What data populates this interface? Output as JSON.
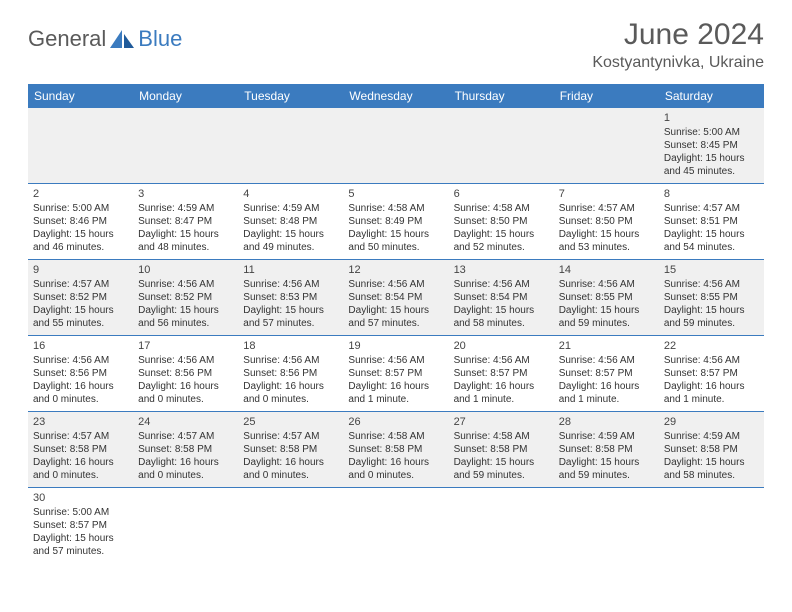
{
  "brand": {
    "part1": "General",
    "part2": "Blue"
  },
  "title": "June 2024",
  "location": "Kostyantynivka, Ukraine",
  "colors": {
    "header_bg": "#3b7bbf",
    "header_text": "#ffffff",
    "row_alt_bg": "#f0f0f0",
    "text": "#333333",
    "title_text": "#5a5a5a"
  },
  "days_of_week": [
    "Sunday",
    "Monday",
    "Tuesday",
    "Wednesday",
    "Thursday",
    "Friday",
    "Saturday"
  ],
  "weeks": [
    [
      null,
      null,
      null,
      null,
      null,
      null,
      {
        "n": "1",
        "sr": "5:00 AM",
        "ss": "8:45 PM",
        "dl": "15 hours and 45 minutes."
      }
    ],
    [
      {
        "n": "2",
        "sr": "5:00 AM",
        "ss": "8:46 PM",
        "dl": "15 hours and 46 minutes."
      },
      {
        "n": "3",
        "sr": "4:59 AM",
        "ss": "8:47 PM",
        "dl": "15 hours and 48 minutes."
      },
      {
        "n": "4",
        "sr": "4:59 AM",
        "ss": "8:48 PM",
        "dl": "15 hours and 49 minutes."
      },
      {
        "n": "5",
        "sr": "4:58 AM",
        "ss": "8:49 PM",
        "dl": "15 hours and 50 minutes."
      },
      {
        "n": "6",
        "sr": "4:58 AM",
        "ss": "8:50 PM",
        "dl": "15 hours and 52 minutes."
      },
      {
        "n": "7",
        "sr": "4:57 AM",
        "ss": "8:50 PM",
        "dl": "15 hours and 53 minutes."
      },
      {
        "n": "8",
        "sr": "4:57 AM",
        "ss": "8:51 PM",
        "dl": "15 hours and 54 minutes."
      }
    ],
    [
      {
        "n": "9",
        "sr": "4:57 AM",
        "ss": "8:52 PM",
        "dl": "15 hours and 55 minutes."
      },
      {
        "n": "10",
        "sr": "4:56 AM",
        "ss": "8:52 PM",
        "dl": "15 hours and 56 minutes."
      },
      {
        "n": "11",
        "sr": "4:56 AM",
        "ss": "8:53 PM",
        "dl": "15 hours and 57 minutes."
      },
      {
        "n": "12",
        "sr": "4:56 AM",
        "ss": "8:54 PM",
        "dl": "15 hours and 57 minutes."
      },
      {
        "n": "13",
        "sr": "4:56 AM",
        "ss": "8:54 PM",
        "dl": "15 hours and 58 minutes."
      },
      {
        "n": "14",
        "sr": "4:56 AM",
        "ss": "8:55 PM",
        "dl": "15 hours and 59 minutes."
      },
      {
        "n": "15",
        "sr": "4:56 AM",
        "ss": "8:55 PM",
        "dl": "15 hours and 59 minutes."
      }
    ],
    [
      {
        "n": "16",
        "sr": "4:56 AM",
        "ss": "8:56 PM",
        "dl": "16 hours and 0 minutes."
      },
      {
        "n": "17",
        "sr": "4:56 AM",
        "ss": "8:56 PM",
        "dl": "16 hours and 0 minutes."
      },
      {
        "n": "18",
        "sr": "4:56 AM",
        "ss": "8:56 PM",
        "dl": "16 hours and 0 minutes."
      },
      {
        "n": "19",
        "sr": "4:56 AM",
        "ss": "8:57 PM",
        "dl": "16 hours and 1 minute."
      },
      {
        "n": "20",
        "sr": "4:56 AM",
        "ss": "8:57 PM",
        "dl": "16 hours and 1 minute."
      },
      {
        "n": "21",
        "sr": "4:56 AM",
        "ss": "8:57 PM",
        "dl": "16 hours and 1 minute."
      },
      {
        "n": "22",
        "sr": "4:56 AM",
        "ss": "8:57 PM",
        "dl": "16 hours and 1 minute."
      }
    ],
    [
      {
        "n": "23",
        "sr": "4:57 AM",
        "ss": "8:58 PM",
        "dl": "16 hours and 0 minutes."
      },
      {
        "n": "24",
        "sr": "4:57 AM",
        "ss": "8:58 PM",
        "dl": "16 hours and 0 minutes."
      },
      {
        "n": "25",
        "sr": "4:57 AM",
        "ss": "8:58 PM",
        "dl": "16 hours and 0 minutes."
      },
      {
        "n": "26",
        "sr": "4:58 AM",
        "ss": "8:58 PM",
        "dl": "16 hours and 0 minutes."
      },
      {
        "n": "27",
        "sr": "4:58 AM",
        "ss": "8:58 PM",
        "dl": "15 hours and 59 minutes."
      },
      {
        "n": "28",
        "sr": "4:59 AM",
        "ss": "8:58 PM",
        "dl": "15 hours and 59 minutes."
      },
      {
        "n": "29",
        "sr": "4:59 AM",
        "ss": "8:58 PM",
        "dl": "15 hours and 58 minutes."
      }
    ],
    [
      {
        "n": "30",
        "sr": "5:00 AM",
        "ss": "8:57 PM",
        "dl": "15 hours and 57 minutes."
      },
      null,
      null,
      null,
      null,
      null,
      null
    ]
  ],
  "labels": {
    "sunrise": "Sunrise:",
    "sunset": "Sunset:",
    "daylight": "Daylight:"
  }
}
